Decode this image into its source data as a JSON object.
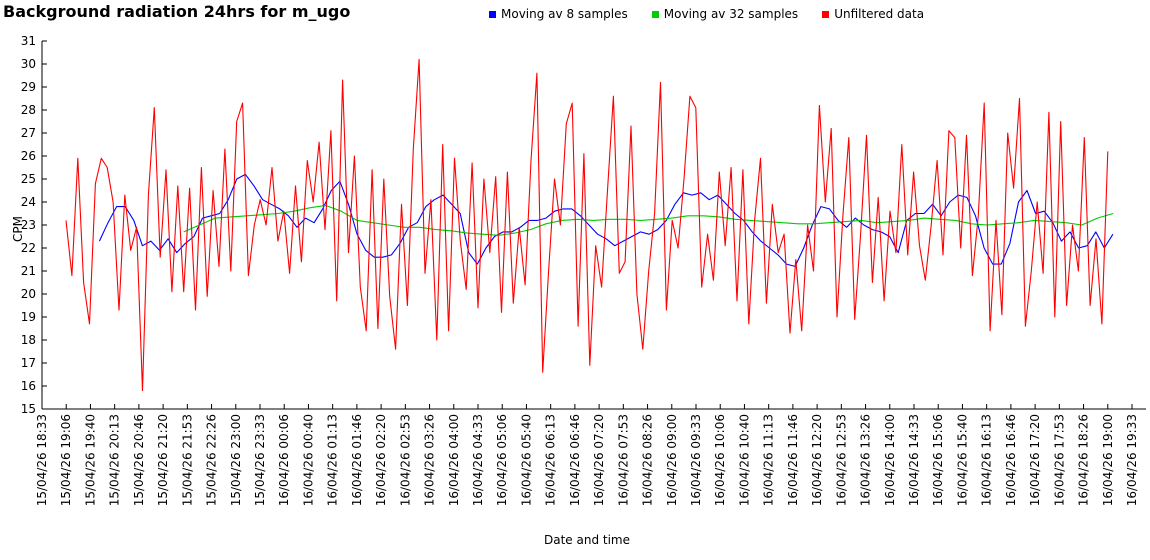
{
  "title": "Background radiation 24hrs for m_ugo",
  "legend": [
    {
      "label": "Moving av 8 samples",
      "color": "#0000ff"
    },
    {
      "label": "Moving av 32 samples",
      "color": "#00cc00"
    },
    {
      "label": "Unfiltered data",
      "color": "#ff0000"
    }
  ],
  "chart_data": {
    "type": "line",
    "title": "Background radiation 24hrs for m_ugo",
    "xlabel": "Date and time",
    "ylabel": "CPM",
    "ylim": [
      15,
      31
    ],
    "grid": false,
    "legend_position": "top-center",
    "y_ticks": [
      15,
      16,
      17,
      18,
      19,
      20,
      21,
      22,
      23,
      24,
      25,
      26,
      27,
      28,
      29,
      30,
      31
    ],
    "x_tick_labels": [
      "15/04/26 18:33",
      "15/04/26 19:06",
      "15/04/26 19:40",
      "15/04/26 20:13",
      "15/04/26 20:46",
      "15/04/26 21:20",
      "15/04/26 21:53",
      "15/04/26 22:26",
      "15/04/26 23:00",
      "15/04/26 23:33",
      "16/04/26 00:06",
      "16/04/26 00:40",
      "16/04/26 01:13",
      "16/04/26 01:46",
      "16/04/26 02:20",
      "16/04/26 02:53",
      "16/04/26 03:26",
      "16/04/26 04:00",
      "16/04/26 04:33",
      "16/04/26 05:06",
      "16/04/26 05:40",
      "16/04/26 06:13",
      "16/04/26 06:46",
      "16/04/26 07:20",
      "16/04/26 07:53",
      "16/04/26 08:26",
      "16/04/26 09:00",
      "16/04/26 09:33",
      "16/04/26 10:06",
      "16/04/26 10:40",
      "16/04/26 11:13",
      "16/04/26 11:46",
      "16/04/26 12:20",
      "16/04/26 12:53",
      "16/04/26 13:26",
      "16/04/26 14:00",
      "16/04/26 14:33",
      "16/04/26 15:06",
      "16/04/26 15:40",
      "16/04/26 16:13",
      "16/04/26 16:46",
      "16/04/26 17:20",
      "16/04/26 17:53",
      "16/04/26 18:26",
      "16/04/26 19:00",
      "16/04/26 19:33"
    ],
    "x_axis_total_minutes": 1500,
    "series": [
      {
        "name": "Moving av 8 samples",
        "color": "#0000ff",
        "start_minute": 79,
        "step_minutes": 11.82,
        "values": [
          22.3,
          23.1,
          23.8,
          23.8,
          23.2,
          22.1,
          22.3,
          21.9,
          22.4,
          21.8,
          22.2,
          22.5,
          23.3,
          23.4,
          23.5,
          24.1,
          25.0,
          25.2,
          24.7,
          24.1,
          23.9,
          23.7,
          23.4,
          22.9,
          23.3,
          23.1,
          23.7,
          24.5,
          24.9,
          23.9,
          22.6,
          21.9,
          21.6,
          21.6,
          21.7,
          22.2,
          22.9,
          23.1,
          23.8,
          24.1,
          24.3,
          23.9,
          23.5,
          21.8,
          21.3,
          22.0,
          22.5,
          22.7,
          22.7,
          22.9,
          23.2,
          23.2,
          23.3,
          23.6,
          23.7,
          23.7,
          23.4,
          23.0,
          22.6,
          22.4,
          22.1,
          22.3,
          22.5,
          22.7,
          22.6,
          22.8,
          23.2,
          23.9,
          24.4,
          24.3,
          24.4,
          24.1,
          24.3,
          23.9,
          23.5,
          23.2,
          22.7,
          22.3,
          22.0,
          21.7,
          21.3,
          21.2,
          22.0,
          23.0,
          23.8,
          23.7,
          23.2,
          22.9,
          23.3,
          23.0,
          22.8,
          22.7,
          22.5,
          21.8,
          23.2,
          23.5,
          23.5,
          23.9,
          23.4,
          24.0,
          24.3,
          24.2,
          23.4,
          22.0,
          21.3,
          21.3,
          22.2,
          24.0,
          24.5,
          23.5,
          23.6,
          23.1,
          22.3,
          22.7,
          22.0,
          22.1,
          22.7,
          22.0,
          22.6
        ]
      },
      {
        "name": "Moving av 32 samples",
        "color": "#00cc00",
        "start_minute": 195,
        "step_minutes": 21.68,
        "values": [
          22.7,
          23.0,
          23.3,
          23.35,
          23.4,
          23.45,
          23.5,
          23.6,
          23.75,
          23.85,
          23.6,
          23.2,
          23.1,
          23.0,
          22.9,
          22.9,
          22.8,
          22.75,
          22.65,
          22.6,
          22.55,
          22.65,
          22.8,
          23.05,
          23.2,
          23.25,
          23.2,
          23.25,
          23.25,
          23.2,
          23.25,
          23.3,
          23.4,
          23.4,
          23.35,
          23.25,
          23.2,
          23.15,
          23.1,
          23.05,
          23.05,
          23.1,
          23.15,
          23.2,
          23.1,
          23.15,
          23.2,
          23.3,
          23.25,
          23.2,
          23.05,
          23.0,
          23.05,
          23.1,
          23.2,
          23.15,
          23.1,
          23.0,
          23.3,
          23.5
        ]
      },
      {
        "name": "Unfiltered data",
        "color": "#ff0000",
        "start_minute": 33,
        "step_minutes": 8.1,
        "values": [
          23.2,
          20.8,
          25.9,
          20.5,
          18.7,
          24.8,
          25.9,
          25.5,
          24.0,
          19.3,
          24.3,
          21.9,
          22.9,
          15.8,
          24.3,
          28.1,
          21.6,
          25.4,
          20.1,
          24.7,
          20.1,
          24.6,
          19.3,
          25.5,
          19.9,
          24.5,
          21.2,
          26.3,
          21.0,
          27.5,
          28.3,
          20.8,
          23.0,
          24.1,
          23.0,
          25.5,
          22.3,
          23.6,
          20.9,
          24.7,
          21.4,
          25.8,
          24.0,
          26.6,
          22.8,
          27.1,
          19.7,
          29.3,
          21.8,
          26.0,
          20.3,
          18.4,
          25.4,
          18.5,
          25.0,
          19.9,
          17.6,
          23.9,
          19.5,
          26.3,
          30.2,
          20.9,
          24.1,
          18.0,
          26.5,
          18.4,
          25.9,
          22.3,
          20.2,
          25.7,
          19.4,
          25.0,
          21.8,
          25.1,
          19.2,
          25.3,
          19.6,
          22.9,
          20.4,
          25.8,
          29.6,
          16.6,
          21.0,
          25.0,
          23.0,
          27.4,
          28.3,
          18.6,
          26.1,
          16.9,
          22.1,
          20.3,
          24.5,
          28.6,
          20.9,
          21.4,
          27.3,
          20.0,
          17.6,
          21.0,
          23.5,
          29.2,
          19.3,
          23.2,
          22.0,
          25.0,
          28.6,
          28.1,
          20.3,
          22.6,
          20.6,
          25.3,
          22.1,
          25.5,
          19.7,
          25.4,
          18.7,
          23.2,
          25.9,
          19.6,
          23.9,
          21.8,
          22.6,
          18.3,
          21.5,
          18.4,
          23.0,
          21.0,
          28.2,
          24.0,
          27.2,
          19.0,
          23.4,
          26.8,
          18.9,
          22.6,
          26.9,
          20.5,
          24.2,
          19.7,
          23.6,
          21.8,
          26.5,
          21.7,
          25.3,
          22.1,
          20.6,
          23.0,
          25.8,
          21.7,
          27.1,
          26.8,
          22.0,
          26.9,
          20.8,
          23.4,
          28.3,
          18.4,
          23.2,
          19.1,
          27.0,
          24.6,
          28.5,
          18.6,
          21.0,
          24.0,
          20.9,
          27.9,
          19.0,
          27.5,
          19.5,
          23.0,
          21.0,
          26.8,
          19.5,
          22.4,
          18.7,
          26.2
        ]
      }
    ]
  }
}
